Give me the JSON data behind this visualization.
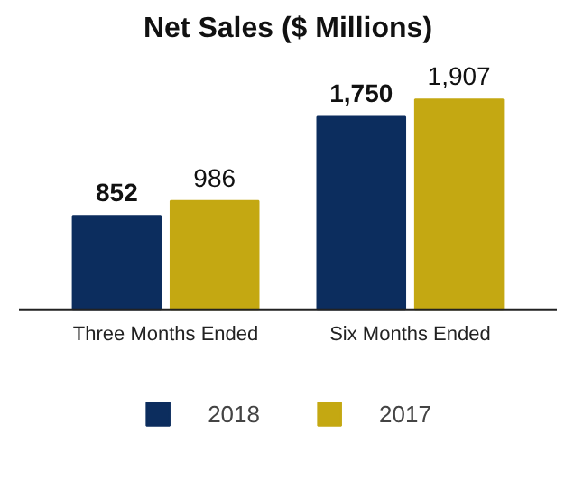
{
  "chart_data": {
    "type": "bar",
    "title": "Net Sales ($ Millions)",
    "categories": [
      "Three Months Ended",
      "Six Months Ended"
    ],
    "series": [
      {
        "name": "2018",
        "color": "#0c2d5e",
        "values": [
          852,
          1750
        ],
        "value_labels": [
          "852",
          "1,750"
        ]
      },
      {
        "name": "2017",
        "color": "#c4a812",
        "values": [
          986,
          1907
        ],
        "value_labels": [
          "986",
          "1,907"
        ]
      }
    ],
    "legend": "bottom"
  }
}
